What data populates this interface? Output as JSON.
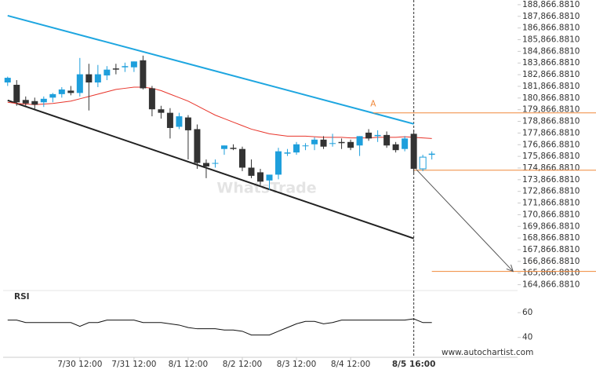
{
  "chart_data": {
    "type": "candlestick",
    "x": [
      0,
      4,
      8,
      12,
      16,
      20,
      24,
      28,
      32,
      36,
      40,
      44,
      48,
      52,
      56,
      60,
      64,
      68,
      72,
      76,
      80,
      84,
      88,
      92,
      96,
      100,
      104,
      108,
      112,
      116,
      120,
      124,
      128,
      132,
      136,
      140,
      144,
      148,
      152,
      156,
      160,
      164,
      168,
      172,
      176,
      180,
      184,
      188
    ],
    "open": [
      182200,
      182000,
      180700,
      180600,
      180500,
      180900,
      181200,
      181500,
      181300,
      182900,
      182200,
      182800,
      183400,
      183500,
      183500,
      184100,
      181700,
      179900,
      179600,
      178400,
      179200,
      178200,
      175300,
      175300,
      176500,
      176600,
      176500,
      174900,
      174500,
      173800,
      174300,
      176100,
      176200,
      176800,
      176900,
      177300,
      177000,
      177100,
      177100,
      176800,
      177900,
      177600,
      177700,
      176900,
      176500,
      177800,
      174800,
      176000
    ],
    "high": [
      182700,
      182400,
      181000,
      180900,
      181000,
      181300,
      181800,
      181900,
      184300,
      183800,
      183700,
      183600,
      183800,
      183900,
      184000,
      184500,
      181900,
      180200,
      180000,
      179600,
      179400,
      178600,
      175600,
      175600,
      176800,
      176900,
      176700,
      175600,
      174800,
      174200,
      176600,
      176500,
      177100,
      177000,
      177500,
      177600,
      177800,
      177400,
      177300,
      177600,
      178200,
      178100,
      178000,
      177100,
      177600,
      178100,
      176000,
      176300
    ],
    "low": [
      181900,
      180200,
      180200,
      179900,
      180100,
      180500,
      180900,
      181100,
      181000,
      179800,
      181800,
      182400,
      182900,
      183100,
      183100,
      181600,
      179300,
      179100,
      177400,
      178200,
      175600,
      174800,
      174000,
      174900,
      176000,
      176400,
      174600,
      174000,
      173400,
      173000,
      173900,
      175900,
      176000,
      176400,
      176400,
      176500,
      176700,
      176500,
      176400,
      175900,
      177200,
      177100,
      176600,
      176200,
      176300,
      174400,
      174600,
      175600
    ],
    "close": [
      182600,
      180500,
      180400,
      180300,
      180800,
      181200,
      181600,
      181300,
      182900,
      182200,
      182900,
      183300,
      183300,
      183600,
      184000,
      181700,
      179900,
      179600,
      178300,
      179300,
      178100,
      175300,
      175000,
      175300,
      176800,
      176500,
      174900,
      174200,
      173700,
      174300,
      176300,
      176200,
      176900,
      176800,
      177300,
      176700,
      177000,
      177000,
      176600,
      177600,
      177400,
      177700,
      176800,
      176400,
      177400,
      174800,
      175800,
      176100
    ],
    "up_color": "#1e9fdc",
    "down_color": "#333333",
    "ma": [
      180500,
      180400,
      180350,
      180300,
      180350,
      180400,
      180500,
      180600,
      180800,
      181000,
      181200,
      181400,
      181600,
      181700,
      181800,
      181800,
      181700,
      181500,
      181200,
      180900,
      180600,
      180200,
      179800,
      179400,
      179100,
      178800,
      178500,
      178200,
      178000,
      177800,
      177700,
      177600,
      177600,
      177600,
      177550,
      177500,
      177500,
      177500,
      177450,
      177450,
      177450,
      177500,
      177500,
      177500,
      177550,
      177500,
      177450,
      177400
    ],
    "ma_color": "#e8352b",
    "upper_line": {
      "x": [
        0,
        180
      ],
      "values": [
        187925,
        178648
      ],
      "color": "#1ea6e0"
    },
    "lower_line": {
      "x": [
        0,
        180
      ],
      "values": [
        180665,
        168833
      ],
      "color": "#222222"
    },
    "levels": [
      {
        "x": 162,
        "value": 179590
      },
      {
        "x": 180,
        "value": 174683
      },
      {
        "x": 188,
        "value": 166010
      }
    ],
    "level_color": "#f0883a",
    "arrow": {
      "x": [
        181,
        224
      ],
      "values": [
        174770,
        166010
      ]
    },
    "annotation": {
      "text": "A",
      "x": 162,
      "value": 179950
    },
    "xlim": [
      -2,
      226
    ],
    "xticks": [
      {
        "value": 32,
        "label": "7/30 12:00"
      },
      {
        "value": 56,
        "label": "7/31 12:00"
      },
      {
        "value": 80,
        "label": "8/1 12:00"
      },
      {
        "value": 104,
        "label": "8/2 12:00"
      },
      {
        "value": 128,
        "label": "8/3 12:00"
      },
      {
        "value": 152,
        "label": "8/4 12:00"
      },
      {
        "value": 180,
        "label": "8/5 16:00"
      }
    ],
    "ylim": [
      164366.881,
      189266.881
    ],
    "yticks": [
      {
        "value": 164866.881,
        "label": "164,866.8810"
      },
      {
        "value": 165866.881,
        "label": "165,866.8810"
      },
      {
        "value": 166866.881,
        "label": "166,866.8810"
      },
      {
        "value": 167866.881,
        "label": "167,866.8810"
      },
      {
        "value": 168866.881,
        "label": "168,866.8810"
      },
      {
        "value": 169866.881,
        "label": "169,866.8810"
      },
      {
        "value": 170866.881,
        "label": "170,866.8810"
      },
      {
        "value": 171866.881,
        "label": "171,866.8810"
      },
      {
        "value": 172866.881,
        "label": "172,866.8810"
      },
      {
        "value": 173866.881,
        "label": "173,866.8810"
      },
      {
        "value": 174866.881,
        "label": "174,866.8810"
      },
      {
        "value": 175866.881,
        "label": "175,866.8810"
      },
      {
        "value": 176866.881,
        "label": "176,866.8810"
      },
      {
        "value": 177866.881,
        "label": "177,866.8810"
      },
      {
        "value": 178866.881,
        "label": "178,866.8810"
      },
      {
        "value": 179866.881,
        "label": "179,866.8810"
      },
      {
        "value": 180866.881,
        "label": "180,866.8810"
      },
      {
        "value": 181866.881,
        "label": "181,866.8810"
      },
      {
        "value": 182866.881,
        "label": "182,866.8810"
      },
      {
        "value": 183866.881,
        "label": "183,866.8810"
      },
      {
        "value": 184866.881,
        "label": "184,866.8810"
      },
      {
        "value": 185866.881,
        "label": "185,866.8810"
      },
      {
        "value": 186866.881,
        "label": "186,866.8810"
      },
      {
        "value": 187866.881,
        "label": "187,866.8810"
      },
      {
        "value": 188866.881,
        "label": "188,866.8810"
      }
    ],
    "rsi": {
      "label": "RSI",
      "values": [
        54,
        54,
        52,
        52,
        52,
        52,
        52,
        52,
        49,
        52,
        52,
        54,
        54,
        54,
        54,
        52,
        52,
        52,
        51,
        50,
        48,
        47,
        47,
        47,
        46,
        46,
        45,
        42,
        42,
        42,
        45,
        48,
        51,
        53,
        53,
        51,
        52,
        54,
        54,
        54,
        54,
        54,
        54,
        54,
        54,
        55,
        52,
        52
      ],
      "ylim": [
        24,
        62
      ],
      "yticks": [
        40,
        60
      ]
    },
    "watermark": "WhatsTrade",
    "source": "www.autochartist.com"
  }
}
